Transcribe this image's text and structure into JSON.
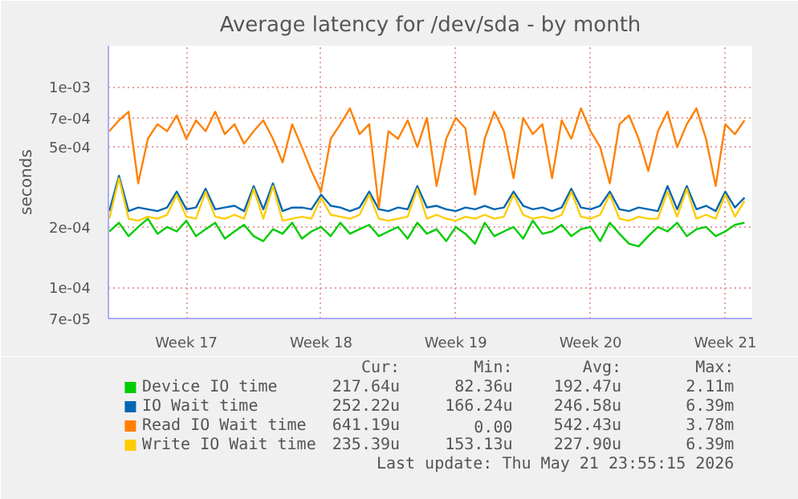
{
  "chart_data": {
    "type": "line",
    "title": "Average latency for /dev/sda - by month",
    "ylabel": "seconds",
    "log": true,
    "grid": true,
    "legend": "bottom",
    "ylim": [
      7e-05,
      0.0016
    ],
    "yticks": [
      {
        "value": 7e-05,
        "label": "7e-05"
      },
      {
        "value": 0.0001,
        "label": "1e-04"
      },
      {
        "value": 0.0002,
        "label": "2e-04"
      },
      {
        "value": 0.0005,
        "label": "5e-04"
      },
      {
        "value": 0.0007,
        "label": "7e-04"
      },
      {
        "value": 0.001,
        "label": "1e-03"
      }
    ],
    "categories": [
      null,
      null,
      null,
      null,
      null,
      null,
      null,
      null,
      "Week 17",
      null,
      null,
      null,
      null,
      null,
      null,
      null,
      null,
      null,
      null,
      null,
      null,
      null,
      "Week 18",
      null,
      null,
      null,
      null,
      null,
      null,
      null,
      null,
      null,
      null,
      null,
      null,
      null,
      "Week 19",
      null,
      null,
      null,
      null,
      null,
      null,
      null,
      null,
      null,
      null,
      null,
      null,
      null,
      "Week 20",
      null,
      null,
      null,
      null,
      null,
      null,
      null,
      null,
      null,
      null,
      null,
      null,
      null,
      "Week 21",
      null,
      null
    ],
    "series": [
      {
        "name": "Device IO time",
        "color": "#00cc00",
        "values": [
          0.00019,
          0.00021,
          0.00018,
          0.0002,
          0.00022,
          0.000185,
          0.0002,
          0.00019,
          0.000215,
          0.00018,
          0.000195,
          0.00021,
          0.000175,
          0.00019,
          0.000205,
          0.00018,
          0.00017,
          0.000195,
          0.000185,
          0.00021,
          0.000175,
          0.00019,
          0.0002,
          0.00018,
          0.00021,
          0.000185,
          0.000195,
          0.000205,
          0.00018,
          0.00019,
          0.0002,
          0.000175,
          0.00021,
          0.000185,
          0.000195,
          0.00017,
          0.0002,
          0.000185,
          0.000165,
          0.00021,
          0.00018,
          0.00019,
          0.0002,
          0.000175,
          0.000215,
          0.000185,
          0.00019,
          0.000205,
          0.00018,
          0.000195,
          0.0002,
          0.00017,
          0.00021,
          0.000185,
          0.000165,
          0.00016,
          0.00018,
          0.0002,
          0.00019,
          0.00021,
          0.00018,
          0.000195,
          0.0002,
          0.00018,
          0.00019,
          0.000205,
          0.00021
        ]
      },
      {
        "name": "IO Wait time",
        "color": "#0066b3",
        "values": [
          0.00024,
          0.00036,
          0.00024,
          0.00025,
          0.000245,
          0.00024,
          0.00025,
          0.0003,
          0.000245,
          0.00025,
          0.00031,
          0.000245,
          0.00025,
          0.000255,
          0.00024,
          0.00032,
          0.000245,
          0.00033,
          0.00024,
          0.00025,
          0.00025,
          0.000245,
          0.00029,
          0.000255,
          0.00025,
          0.00024,
          0.00025,
          0.0003,
          0.000245,
          0.00024,
          0.00025,
          0.000245,
          0.00032,
          0.00025,
          0.000255,
          0.000245,
          0.00024,
          0.00025,
          0.000245,
          0.000255,
          0.000245,
          0.00025,
          0.0003,
          0.000255,
          0.000245,
          0.00025,
          0.00024,
          0.00025,
          0.00031,
          0.00025,
          0.000245,
          0.000255,
          0.0003,
          0.000245,
          0.00024,
          0.00025,
          0.000245,
          0.00024,
          0.00032,
          0.000245,
          0.00032,
          0.000245,
          0.000255,
          0.00024,
          0.0003,
          0.00025,
          0.00028
        ]
      },
      {
        "name": "Read IO Wait time",
        "color": "#ff8000",
        "values": [
          0.0006,
          0.00068,
          0.00075,
          0.00033,
          0.00055,
          0.00065,
          0.0006,
          0.00072,
          0.00055,
          0.00068,
          0.0006,
          0.00075,
          0.00058,
          0.00065,
          0.00052,
          0.0006,
          0.00068,
          0.00055,
          0.00042,
          0.00065,
          0.0005,
          0.00038,
          0.0003,
          0.00055,
          0.00065,
          0.00078,
          0.00058,
          0.00065,
          0.00025,
          0.0006,
          0.00055,
          0.00068,
          0.0005,
          0.0007,
          0.00032,
          0.00055,
          0.0007,
          0.00062,
          0.00029,
          0.00055,
          0.00075,
          0.0006,
          0.00035,
          0.0007,
          0.00058,
          0.00065,
          0.00035,
          0.00068,
          0.00055,
          0.00078,
          0.0006,
          0.0005,
          0.00033,
          0.00065,
          0.00072,
          0.00055,
          0.00038,
          0.0006,
          0.00075,
          0.0005,
          0.00065,
          0.00078,
          0.00055,
          0.00032,
          0.00065,
          0.00058,
          0.00068
        ]
      },
      {
        "name": "Write IO Wait time",
        "color": "#ffcc00",
        "values": [
          0.00022,
          0.00035,
          0.00022,
          0.000215,
          0.000225,
          0.00022,
          0.00023,
          0.00029,
          0.000225,
          0.00022,
          0.0003,
          0.000225,
          0.00022,
          0.00023,
          0.00022,
          0.00031,
          0.00022,
          0.00032,
          0.000215,
          0.00022,
          0.000225,
          0.00022,
          0.00028,
          0.00023,
          0.000225,
          0.00022,
          0.00023,
          0.00029,
          0.00022,
          0.000215,
          0.00022,
          0.000225,
          0.00031,
          0.00022,
          0.00023,
          0.00022,
          0.000215,
          0.000225,
          0.00022,
          0.00023,
          0.00022,
          0.000225,
          0.00029,
          0.00023,
          0.00022,
          0.000225,
          0.00022,
          0.00023,
          0.0003,
          0.000225,
          0.00022,
          0.00023,
          0.00029,
          0.00022,
          0.000215,
          0.000225,
          0.00022,
          0.00022,
          0.0003,
          0.000225,
          0.00031,
          0.00022,
          0.00023,
          0.00022,
          0.00029,
          0.000225,
          0.00027
        ]
      }
    ],
    "annotations": [
      "Cur:",
      "Min:",
      "Avg:",
      "Max:",
      "217.64u",
      "82.36u",
      "192.47u",
      "2.11m",
      "252.22u",
      "166.24u",
      "246.58u",
      "6.39m",
      "641.19u",
      "0.00",
      "542.43u",
      "3.78m",
      "235.39u",
      "153.13u",
      "227.90u",
      "6.39m",
      "Last update: Thu May 21 23:55:15 2026"
    ]
  }
}
